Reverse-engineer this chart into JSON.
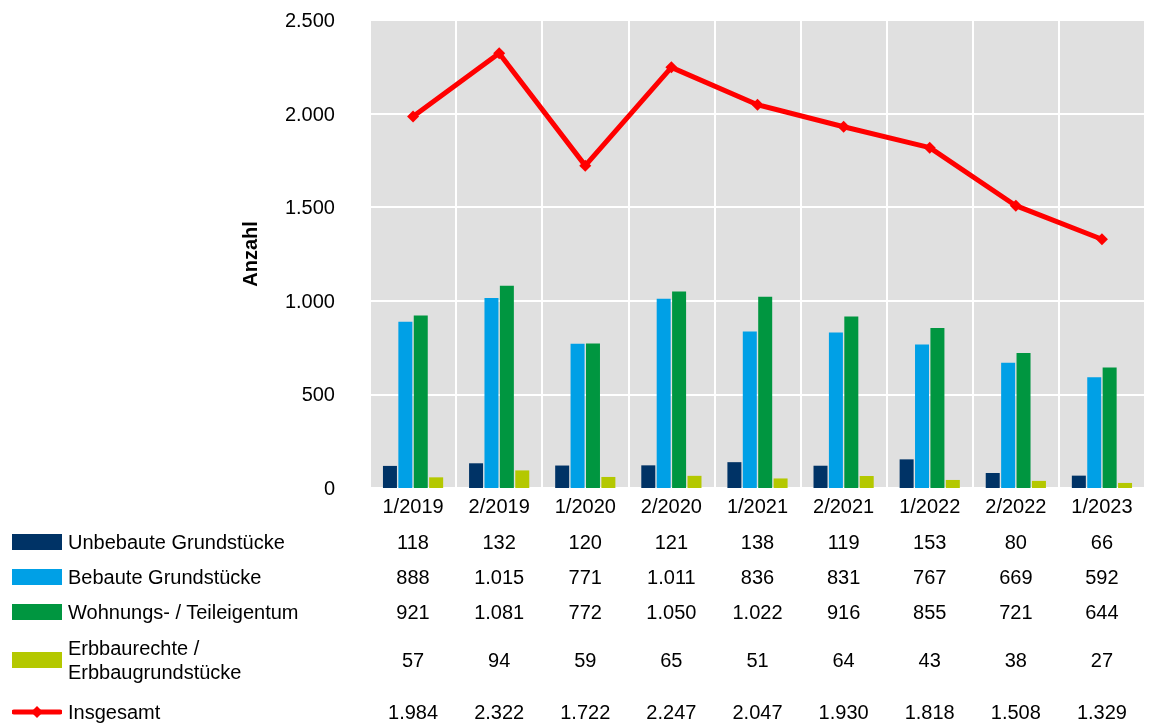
{
  "chart_data": {
    "type": "bar",
    "ylabel": "Anzahl",
    "categories": [
      "1/2019",
      "2/2019",
      "1/2020",
      "2/2020",
      "1/2021",
      "2/2021",
      "1/2022",
      "2/2022",
      "1/2023"
    ],
    "ylim": [
      0,
      2500
    ],
    "yticks": [
      0,
      {
        "value": 500,
        "label": "500"
      },
      {
        "value": 1000,
        "label": "1.000"
      },
      {
        "value": 1500,
        "label": "1.500"
      },
      {
        "value": 2000,
        "label": "2.000"
      },
      {
        "value": 2500,
        "label": "2.500"
      }
    ],
    "grid": true,
    "legend": "bottom",
    "series": [
      {
        "name": "Unbebaute Grundstücke",
        "color": "#003366",
        "values": [
          118,
          132,
          120,
          121,
          138,
          119,
          153,
          80,
          66
        ],
        "value_labels": [
          "118",
          "132",
          "120",
          "121",
          "138",
          "119",
          "153",
          "80",
          "66"
        ]
      },
      {
        "name": "Bebaute Grundstücke",
        "color": "#00a0e6",
        "values": [
          888,
          1015,
          771,
          1011,
          836,
          831,
          767,
          669,
          592
        ],
        "value_labels": [
          "888",
          "1.015",
          "771",
          "1.011",
          "836",
          "831",
          "767",
          "669",
          "592"
        ]
      },
      {
        "name": "Wohnungs- / Teileigentum",
        "color": "#009640",
        "values": [
          921,
          1081,
          772,
          1050,
          1022,
          916,
          855,
          721,
          644
        ],
        "value_labels": [
          "921",
          "1.081",
          "772",
          "1.050",
          "1.022",
          "916",
          "855",
          "721",
          "644"
        ]
      },
      {
        "name": "Erbbaurechte / Erbbaugrundstücke",
        "color": "#b4c800",
        "values": [
          57,
          94,
          59,
          65,
          51,
          64,
          43,
          38,
          27
        ],
        "value_labels": [
          "57",
          "94",
          "59",
          "65",
          "51",
          "64",
          "43",
          "38",
          "27"
        ]
      },
      {
        "name": "Insgesamt",
        "type": "line",
        "color": "#ff0000",
        "marker": "diamond",
        "line_style": "solid",
        "values": [
          1984,
          2322,
          1722,
          2247,
          2047,
          1930,
          1818,
          1508,
          1329
        ],
        "value_labels": [
          "1.984",
          "2.322",
          "1.722",
          "2.247",
          "2.047",
          "1.930",
          "1.818",
          "1.508",
          "1.329"
        ]
      }
    ]
  }
}
